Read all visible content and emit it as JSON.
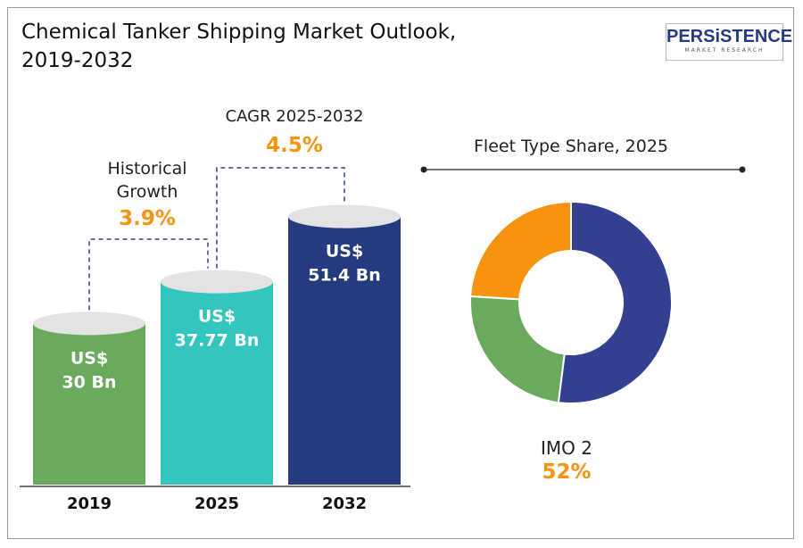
{
  "title_line1": "Chemical Tanker Shipping Market Outlook,",
  "title_line2": "2019-2032",
  "logo": {
    "main": "PERSiSTENCE",
    "sub": "MARKET RESEARCH"
  },
  "cagr": {
    "label": "CAGR 2025-2032",
    "value": "4.5%"
  },
  "historical": {
    "label1": "Historical",
    "label2": "Growth",
    "value": "3.9%"
  },
  "chart_data": [
    {
      "type": "bar",
      "title": "Chemical Tanker Shipping Market Outlook, 2019-2032",
      "categories": [
        "2019",
        "2025",
        "2032"
      ],
      "values": [
        30,
        37.77,
        51.4
      ],
      "unit": "US$ Bn",
      "labels": [
        [
          "US$",
          "30 Bn"
        ],
        [
          "US$",
          "37.77 Bn"
        ],
        [
          "US$",
          "51.4 Bn"
        ]
      ],
      "colors": [
        "#6aaa5e",
        "#33c6bf",
        "#253b80"
      ]
    },
    {
      "type": "pie",
      "title": "Fleet Type Share, 2025",
      "slices": [
        {
          "name": "IMO 2",
          "value": 52,
          "color": "#333f8f"
        },
        {
          "name": "",
          "value": 24,
          "color": "#6aaa5e"
        },
        {
          "name": "",
          "value": 24,
          "color": "#f7930f"
        }
      ],
      "callout": {
        "label": "IMO 2",
        "value": "52%"
      }
    }
  ],
  "colors": {
    "accent": "#f7930f",
    "navy": "#253b80"
  }
}
